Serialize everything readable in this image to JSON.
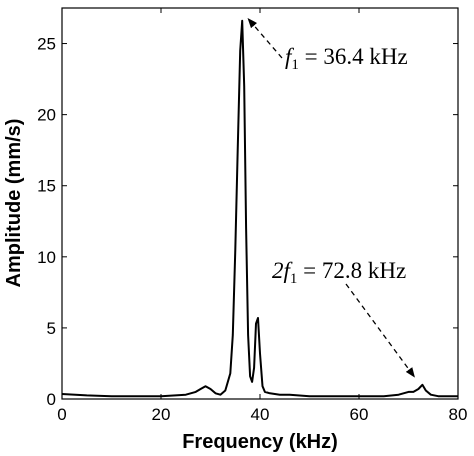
{
  "chart_data": {
    "type": "line",
    "title": "",
    "xlabel": "Frequency (kHz)",
    "ylabel": "Amplitude (mm/s)",
    "xlim": [
      0,
      80
    ],
    "ylim": [
      0,
      27.5
    ],
    "xticks": [
      0,
      20,
      40,
      60,
      80
    ],
    "yticks": [
      0,
      5,
      10,
      15,
      20,
      25
    ],
    "grid": false,
    "legend": "none",
    "line_color": "#000000",
    "series": [
      {
        "name": "",
        "x": [
          0,
          5,
          10,
          15,
          20,
          25,
          27,
          28,
          29,
          30,
          31,
          32,
          33,
          34,
          34.5,
          35,
          35.5,
          36,
          36.4,
          36.8,
          37.2,
          37.6,
          38,
          38.4,
          38.8,
          39.2,
          39.6,
          40,
          40.5,
          41,
          42,
          44,
          46,
          50,
          55,
          60,
          65,
          68,
          70,
          71,
          72,
          72.8,
          73.5,
          74.5,
          76,
          78,
          80
        ],
        "y": [
          0.35,
          0.25,
          0.2,
          0.2,
          0.2,
          0.3,
          0.5,
          0.7,
          0.9,
          0.7,
          0.4,
          0.3,
          0.6,
          1.8,
          4.5,
          10.5,
          17.5,
          24.5,
          26.6,
          22,
          12,
          4.5,
          1.6,
          1.2,
          2.2,
          5.3,
          5.7,
          3.2,
          0.9,
          0.5,
          0.4,
          0.3,
          0.3,
          0.2,
          0.2,
          0.2,
          0.2,
          0.3,
          0.5,
          0.5,
          0.7,
          1.0,
          0.6,
          0.3,
          0.2,
          0.2,
          0.2
        ]
      }
    ],
    "annotations": [
      {
        "prefix": "",
        "symbol": "f",
        "subscript": "1",
        "text": " = 36.4 kHz",
        "target_x": 36.4,
        "target_y": 26.6
      },
      {
        "prefix": "2",
        "symbol": "f",
        "subscript": "1",
        "text": " = 72.8 kHz",
        "target_x": 72.8,
        "target_y": 1.0
      }
    ]
  }
}
